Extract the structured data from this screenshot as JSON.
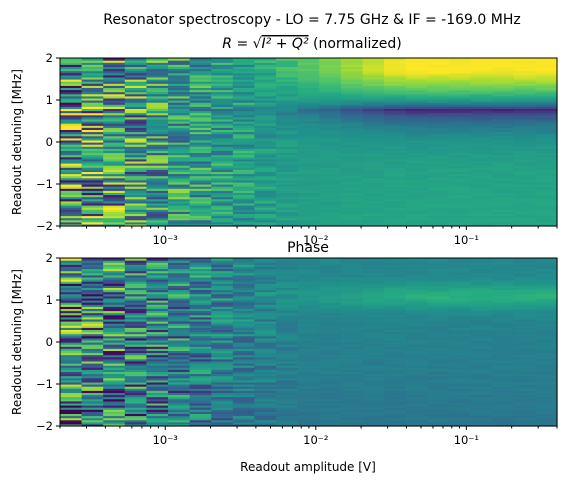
{
  "chart_data": [
    {
      "type": "heatmap",
      "title_line1": "Resonator spectroscopy - LO = 7.75 GHz & IF = -169.0 MHz",
      "title_line2_pre": "R = √",
      "title_line2_math": "I² + Q²",
      "title_line2_post": " (normalized)",
      "xlabel": "",
      "ylabel": "Readout detuning [MHz]",
      "xscale": "log",
      "xlim": [
        0.0002,
        0.4
      ],
      "ylim": [
        -2,
        2
      ],
      "x_ticks": [
        {
          "value": 0.001,
          "label": "10⁻³"
        },
        {
          "value": 0.01,
          "label": "10⁻²"
        },
        {
          "value": 0.1,
          "label": "10⁻¹"
        }
      ],
      "y_ticks": [
        -2,
        -1,
        0,
        1,
        2
      ],
      "colormap": "viridis",
      "resonance_detuning_mhz": 0.8,
      "colorbar": false
    },
    {
      "type": "heatmap",
      "title": "Phase",
      "xlabel": "Readout amplitude [V]",
      "ylabel": "Readout detuning [MHz]",
      "xscale": "log",
      "xlim": [
        0.0002,
        0.4
      ],
      "ylim": [
        -2,
        2
      ],
      "x_ticks": [
        {
          "value": 0.001,
          "label": "10⁻³"
        },
        {
          "value": 0.01,
          "label": "10⁻²"
        },
        {
          "value": 0.1,
          "label": "10⁻¹"
        }
      ],
      "y_ticks": [
        -2,
        -1,
        0,
        1,
        2
      ],
      "colormap": "viridis",
      "resonance_detuning_mhz": 1.1,
      "colorbar": false
    }
  ]
}
